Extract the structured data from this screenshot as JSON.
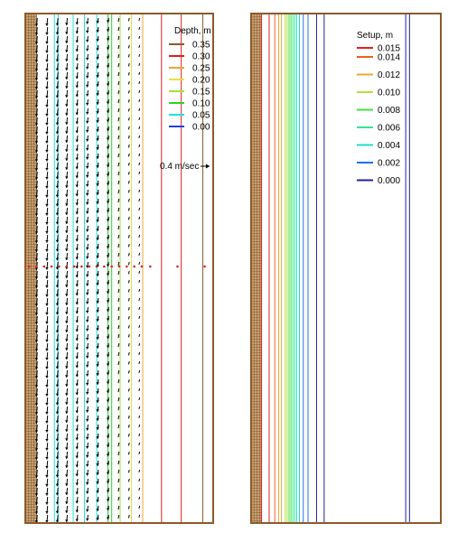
{
  "chart_data": [
    {
      "type": "contour",
      "legend": {
        "title": "Depth, m",
        "entries": [
          {
            "label": "0.35",
            "value": 0.35,
            "color": "#8B5A2B"
          },
          {
            "label": "0.30",
            "value": 0.3,
            "color": "#E02020"
          },
          {
            "label": "0.25",
            "value": 0.25,
            "color": "#F0A040"
          },
          {
            "label": "0.20",
            "value": 0.2,
            "color": "#E8E040"
          },
          {
            "label": "0.15",
            "value": 0.15,
            "color": "#A0E040"
          },
          {
            "label": "0.10",
            "value": 0.1,
            "color": "#30D030"
          },
          {
            "label": "0.05",
            "value": 0.05,
            "color": "#20E0E0"
          },
          {
            "label": "0.00",
            "value": 0.0,
            "color": "#2040E0"
          }
        ]
      },
      "vector_scale_label": "0.4 m/sec",
      "contour_lines": [
        {
          "value": 0.05,
          "color": "#20E0E0",
          "x": [
            0.155,
            0.175,
            0.255,
            0.315,
            0.38
          ]
        },
        {
          "value": 0.1,
          "color": "#30D030",
          "x": [
            0.44,
            0.46
          ]
        },
        {
          "value": 0.15,
          "color": "#A0E040",
          "x": [
            0.505
          ]
        },
        {
          "value": 0.2,
          "color": "#E8E040",
          "x": [
            0.565
          ]
        },
        {
          "value": 0.25,
          "color": "#F0A040",
          "x": [
            0.625
          ]
        },
        {
          "value": 0.3,
          "color": "#E02020",
          "x": [
            0.725,
            0.83
          ]
        },
        {
          "value": 0.35,
          "color": "#8B5A2B",
          "x": [
            0.945
          ]
        }
      ],
      "vector_columns": [
        0.06,
        0.115,
        0.17,
        0.22,
        0.275,
        0.33,
        0.385,
        0.44,
        0.495,
        0.55,
        0.605
      ],
      "vector_magnitudes": [
        1.0,
        0.95,
        0.9,
        0.85,
        0.75,
        0.65,
        0.55,
        0.45,
        0.3,
        0.2,
        0.12
      ],
      "transect_dots": [
        0.02,
        0.06,
        0.1,
        0.14,
        0.18,
        0.22,
        0.26,
        0.3,
        0.34,
        0.38,
        0.42,
        0.46,
        0.5,
        0.54,
        0.58,
        0.62,
        0.665,
        0.81,
        0.955
      ]
    },
    {
      "type": "contour",
      "legend": {
        "title": "Setup, m",
        "entries": [
          {
            "label": "0.015",
            "value": 0.015,
            "color": "#E02020"
          },
          {
            "label": "0.014",
            "value": 0.014,
            "color": "#F06020"
          },
          {
            "label": "0.012",
            "value": 0.012,
            "color": "#F0A830"
          },
          {
            "label": "0.010",
            "value": 0.01,
            "color": "#B0E040"
          },
          {
            "label": "0.008",
            "value": 0.008,
            "color": "#40E040"
          },
          {
            "label": "0.006",
            "value": 0.006,
            "color": "#30E890"
          },
          {
            "label": "0.004",
            "value": 0.004,
            "color": "#20D8D0"
          },
          {
            "label": "0.002",
            "value": 0.002,
            "color": "#2070E8"
          },
          {
            "label": "0.000",
            "value": 0.0,
            "color": "#2020A0"
          }
        ]
      },
      "contour_lines": [
        {
          "value": 0.015,
          "color": "#E02020",
          "x": [
            0.055,
            0.095
          ]
        },
        {
          "value": 0.014,
          "color": "#F06020",
          "x": [
            0.125
          ]
        },
        {
          "value": 0.012,
          "color": "#F0A830",
          "x": [
            0.145,
            0.16
          ]
        },
        {
          "value": 0.01,
          "color": "#B0E040",
          "x": [
            0.18,
            0.19
          ]
        },
        {
          "value": 0.008,
          "color": "#40E040",
          "x": [
            0.2,
            0.21
          ]
        },
        {
          "value": 0.006,
          "color": "#30E890",
          "x": [
            0.22,
            0.23
          ]
        },
        {
          "value": 0.004,
          "color": "#20D8D0",
          "x": [
            0.24,
            0.255
          ]
        },
        {
          "value": 0.002,
          "color": "#2070E8",
          "x": [
            0.275,
            0.3
          ]
        },
        {
          "value": 0.0,
          "color": "#2020A0",
          "x": [
            0.345,
            0.385,
            0.815,
            0.835
          ]
        }
      ]
    }
  ]
}
